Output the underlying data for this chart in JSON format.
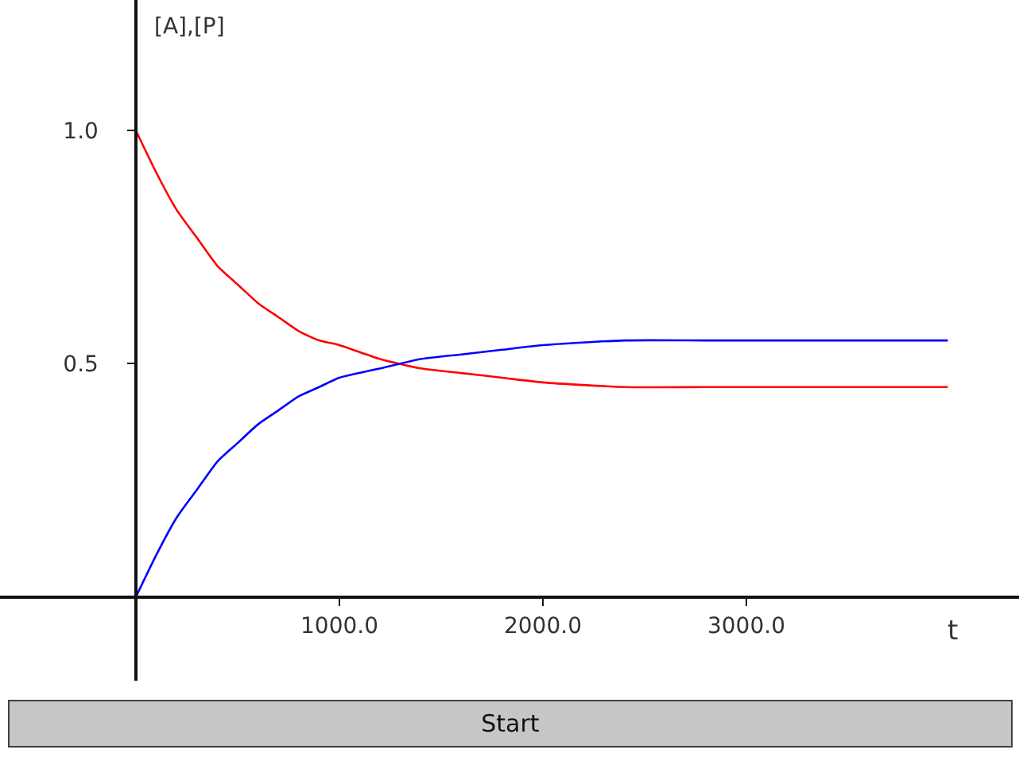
{
  "chart_data": {
    "type": "line",
    "xlabel": "t",
    "ylabel": "[A],[P]",
    "x": [
      0,
      100,
      200,
      300,
      400,
      500,
      600,
      700,
      800,
      900,
      1000,
      1200,
      1400,
      1600,
      1800,
      2000,
      2400,
      2800,
      3200,
      3600,
      3990
    ],
    "series": [
      {
        "color": "#ff0000",
        "values": [
          1.0,
          0.91,
          0.83,
          0.77,
          0.71,
          0.67,
          0.63,
          0.6,
          0.57,
          0.55,
          0.54,
          0.51,
          0.49,
          0.48,
          0.47,
          0.46,
          0.45,
          0.45,
          0.45,
          0.45,
          0.45
        ]
      },
      {
        "color": "#0000ff",
        "values": [
          0.0,
          0.09,
          0.17,
          0.23,
          0.29,
          0.33,
          0.37,
          0.4,
          0.43,
          0.45,
          0.47,
          0.49,
          0.51,
          0.52,
          0.53,
          0.54,
          0.55,
          0.55,
          0.55,
          0.55,
          0.55
        ]
      }
    ],
    "xlim": [
      -668,
      4340
    ],
    "ylim": [
      -0.18,
      1.28
    ],
    "xticks": [
      {
        "value": 1000,
        "label": "1000.0"
      },
      {
        "value": 2000,
        "label": "2000.0"
      },
      {
        "value": 3000,
        "label": "3000.0"
      }
    ],
    "yticks": [
      {
        "value": 0.5,
        "label": "0.5"
      },
      {
        "value": 1.0,
        "label": "1.0"
      }
    ],
    "marker": "none",
    "line_style": "solid",
    "annotations": [
      "Start"
    ]
  }
}
